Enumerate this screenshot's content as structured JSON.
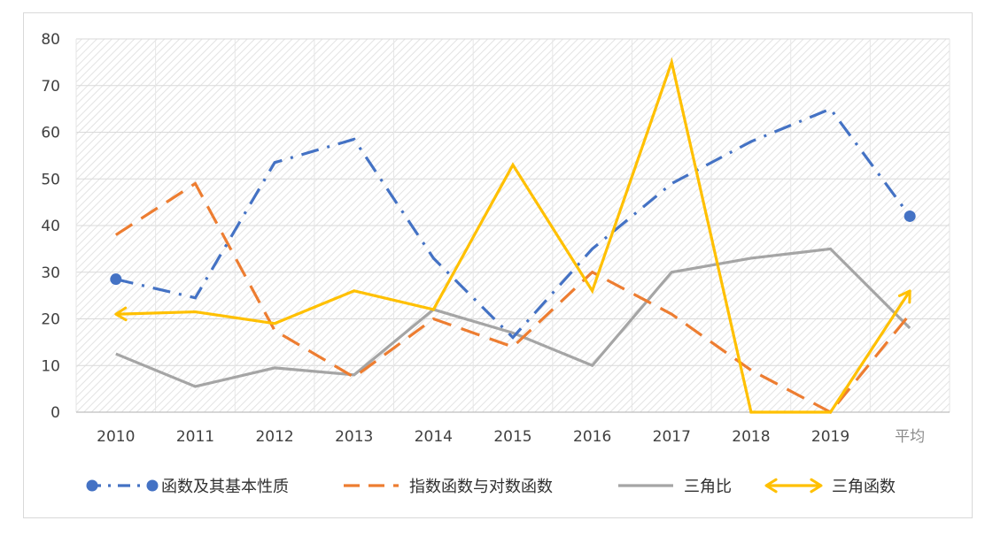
{
  "chart_data": {
    "type": "line",
    "categories": [
      "2010",
      "2011",
      "2012",
      "2013",
      "2014",
      "2015",
      "2016",
      "2017",
      "2018",
      "2019",
      "平均"
    ],
    "ylim": [
      0,
      80
    ],
    "yticks": [
      0,
      10,
      20,
      30,
      40,
      50,
      60,
      70,
      80
    ],
    "grid": true,
    "legend_position": "bottom",
    "series": [
      {
        "name": "函数及其基本性质",
        "color": "#4472c4",
        "line_style": "dash-dot",
        "markers": "circle-endpoints",
        "values": [
          28.5,
          24.5,
          53.5,
          58.5,
          33,
          16,
          35,
          49,
          58,
          65,
          42
        ]
      },
      {
        "name": "指数函数与对数函数",
        "color": "#ed7d31",
        "line_style": "dash",
        "markers": "none",
        "values": [
          38,
          49,
          17.5,
          7.5,
          20,
          14,
          30,
          21,
          9,
          0,
          21
        ]
      },
      {
        "name": "三角比",
        "color": "#a5a5a5",
        "line_style": "solid",
        "markers": "none",
        "values": [
          12.5,
          5.5,
          9.5,
          8,
          22,
          17,
          10,
          30,
          33,
          35,
          18
        ]
      },
      {
        "name": "三角函数",
        "color": "#ffc000",
        "line_style": "solid",
        "markers": "arrow-endpoints",
        "values": [
          21,
          21.5,
          19,
          26,
          22,
          53,
          26,
          75,
          0,
          0,
          26
        ]
      }
    ]
  }
}
